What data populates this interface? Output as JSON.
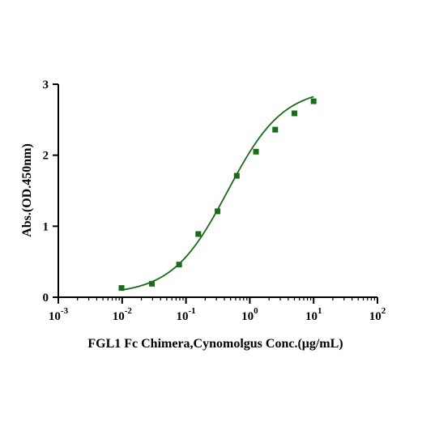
{
  "chart_data": {
    "type": "scatter",
    "title": "",
    "xlabel": "FGL1 Fc Chimera,Cynomolgus Conc.(μg/mL)",
    "ylabel": "Abs.(OD.450nm)",
    "x_scale": "log",
    "xlim": [
      0.001,
      100
    ],
    "ylim": [
      0,
      3
    ],
    "x_ticks": [
      {
        "value": 0.001,
        "base": "10",
        "exp": "-3"
      },
      {
        "value": 0.01,
        "base": "10",
        "exp": "-2"
      },
      {
        "value": 0.1,
        "base": "10",
        "exp": "-1"
      },
      {
        "value": 1,
        "base": "10",
        "exp": "0"
      },
      {
        "value": 10,
        "base": "10",
        "exp": "1"
      },
      {
        "value": 100,
        "base": "10",
        "exp": "2"
      }
    ],
    "y_ticks": [
      {
        "value": 0,
        "label": "0"
      },
      {
        "value": 1,
        "label": "1"
      },
      {
        "value": 2,
        "label": "2"
      },
      {
        "value": 3,
        "label": "3"
      }
    ],
    "grid": false,
    "legend": "none",
    "colors": {
      "marker": "#1a6b1a",
      "curve": "#1a6b1a",
      "axis": "#000000"
    },
    "series": [
      {
        "points": [
          {
            "x": 0.00977,
            "y": 0.13
          },
          {
            "x": 0.0293,
            "y": 0.19
          },
          {
            "x": 0.0781,
            "y": 0.46
          },
          {
            "x": 0.156,
            "y": 0.89
          },
          {
            "x": 0.3125,
            "y": 1.21
          },
          {
            "x": 0.625,
            "y": 1.71
          },
          {
            "x": 1.25,
            "y": 2.05
          },
          {
            "x": 2.5,
            "y": 2.36
          },
          {
            "x": 5,
            "y": 2.59
          },
          {
            "x": 10,
            "y": 2.76
          }
        ],
        "fit": {
          "model": "4PL",
          "bottom": 0.04,
          "top": 2.95,
          "ec50": 0.45,
          "hill": 1.0,
          "x_from": 0.00977,
          "x_to": 10
        }
      }
    ]
  }
}
